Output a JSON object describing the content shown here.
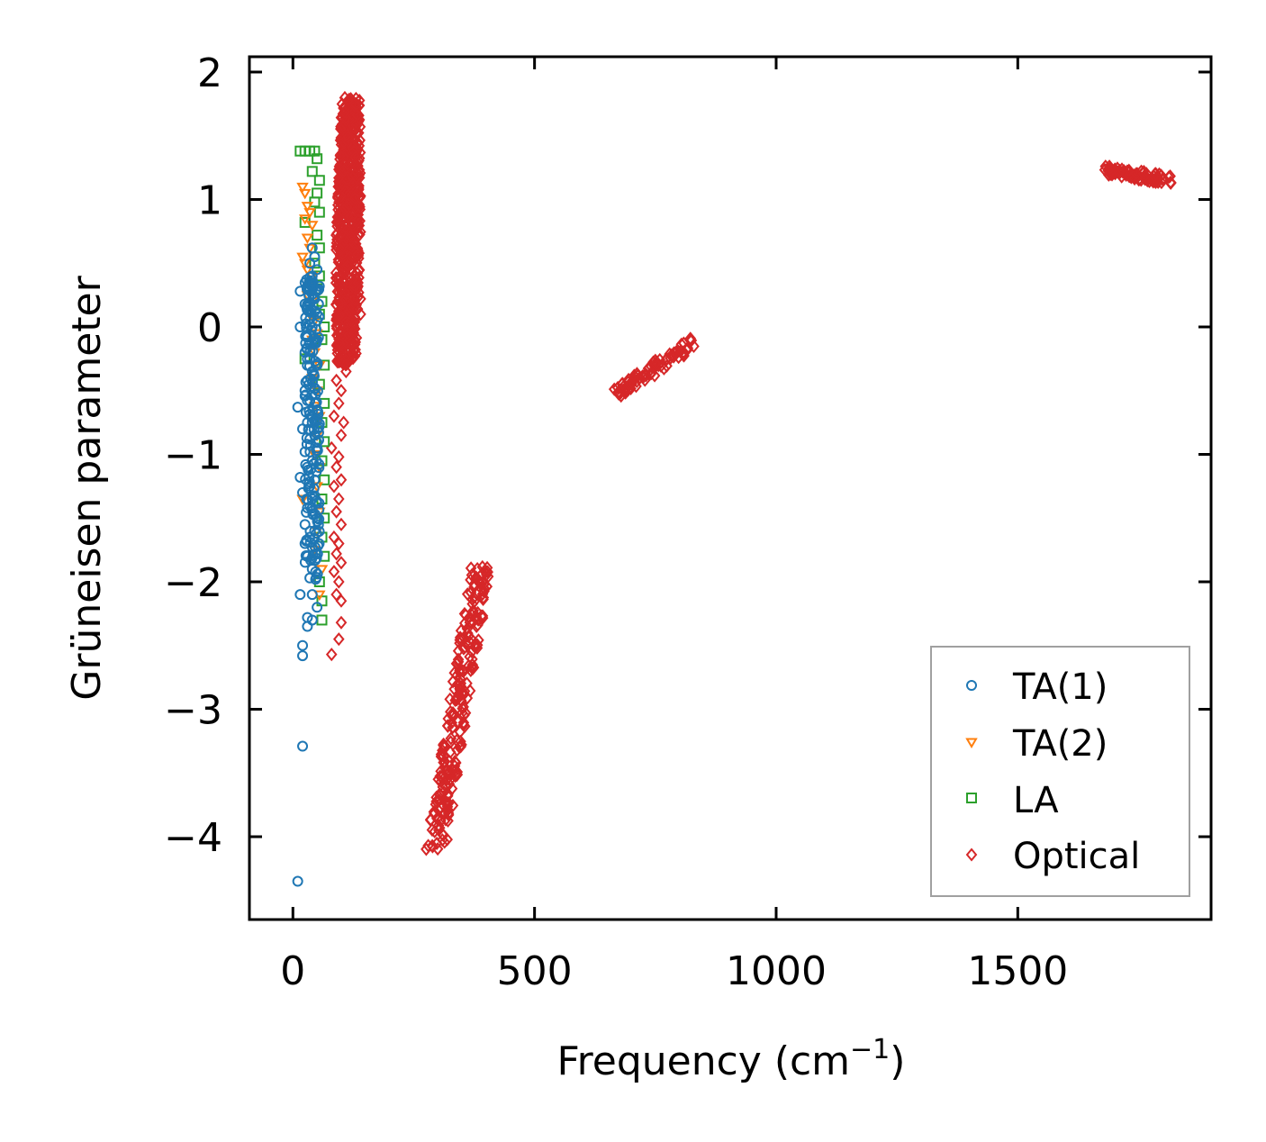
{
  "chart_data": {
    "type": "scatter",
    "title": "",
    "xlabel": "Frequency (cm",
    "xlabel_sup": "−1",
    "xlabel_close": ")",
    "ylabel": "Grüneisen parameter",
    "xlim": [
      -90,
      1900
    ],
    "ylim": [
      -4.65,
      2.12
    ],
    "xticks": [
      0,
      500,
      1000,
      1500
    ],
    "xtick_labels": [
      "0",
      "500",
      "1000",
      "1500"
    ],
    "yticks": [
      2,
      1,
      0,
      -1,
      -2,
      -3,
      -4
    ],
    "ytick_labels": [
      "2",
      "1",
      "0",
      "−1",
      "−2",
      "−3",
      "−4"
    ],
    "legend_position": "lower-right",
    "series": [
      {
        "name": "TA(1)",
        "marker": "circle",
        "color": "#1f77b4",
        "points": [
          [
            10,
            -4.35
          ],
          [
            20,
            -3.29
          ],
          [
            20,
            -2.58
          ],
          [
            20,
            -2.5
          ],
          [
            15,
            -2.1
          ],
          [
            30,
            -2.35
          ],
          [
            40,
            -2.3
          ],
          [
            30,
            -2.28
          ],
          [
            50,
            -2.2
          ],
          [
            40,
            -2.1
          ],
          [
            35,
            -1.97
          ],
          [
            40,
            -1.9
          ],
          [
            30,
            -1.8
          ],
          [
            25,
            -1.7
          ],
          [
            35,
            -1.65
          ],
          [
            45,
            -1.6
          ],
          [
            25,
            -1.55
          ],
          [
            50,
            -1.5
          ],
          [
            30,
            -1.42
          ],
          [
            40,
            -1.35
          ],
          [
            20,
            -1.3
          ],
          [
            35,
            -1.25
          ],
          [
            15,
            -1.18
          ],
          [
            45,
            -1.2
          ],
          [
            30,
            -1.1
          ],
          [
            40,
            -1.05
          ],
          [
            25,
            -0.98
          ],
          [
            50,
            -0.95
          ],
          [
            35,
            -0.88
          ],
          [
            45,
            -0.85
          ],
          [
            20,
            -0.8
          ],
          [
            30,
            -0.75
          ],
          [
            40,
            -0.7
          ],
          [
            10,
            -0.63
          ],
          [
            50,
            -0.65
          ],
          [
            35,
            -0.58
          ],
          [
            25,
            -0.5
          ],
          [
            45,
            -0.48
          ],
          [
            30,
            -0.42
          ],
          [
            40,
            -0.35
          ],
          [
            50,
            -0.3
          ],
          [
            35,
            -0.25
          ],
          [
            25,
            -0.2
          ],
          [
            45,
            -0.12
          ],
          [
            30,
            -0.08
          ],
          [
            40,
            0.0
          ],
          [
            15,
            0.0
          ],
          [
            50,
            0.05
          ],
          [
            35,
            0.12
          ],
          [
            25,
            0.18
          ],
          [
            45,
            0.22
          ],
          [
            15,
            0.28
          ],
          [
            30,
            0.32
          ],
          [
            40,
            0.4
          ],
          [
            50,
            0.45
          ],
          [
            35,
            0.5
          ],
          [
            45,
            0.55
          ],
          [
            40,
            0.62
          ]
        ]
      },
      {
        "name": "TA(2)",
        "marker": "triangle-down",
        "color": "#ff7f0e",
        "points": [
          [
            20,
            1.1
          ],
          [
            25,
            1.05
          ],
          [
            30,
            0.95
          ],
          [
            35,
            0.9
          ],
          [
            25,
            0.85
          ],
          [
            40,
            0.8
          ],
          [
            30,
            0.7
          ],
          [
            35,
            0.62
          ],
          [
            20,
            0.55
          ],
          [
            25,
            0.5
          ],
          [
            30,
            0.45
          ],
          [
            40,
            0.4
          ],
          [
            35,
            0.35
          ],
          [
            45,
            0.3
          ],
          [
            30,
            0.25
          ],
          [
            40,
            0.2
          ],
          [
            35,
            0.1
          ],
          [
            45,
            0.05
          ],
          [
            50,
            -0.05
          ],
          [
            40,
            -0.1
          ],
          [
            45,
            -0.2
          ],
          [
            55,
            -0.3
          ],
          [
            40,
            -0.4
          ],
          [
            50,
            -0.5
          ],
          [
            45,
            -0.62
          ],
          [
            55,
            -0.7
          ],
          [
            50,
            -0.85
          ],
          [
            45,
            -1.0
          ],
          [
            55,
            -1.1
          ],
          [
            50,
            -1.25
          ],
          [
            20,
            -1.35
          ],
          [
            55,
            -1.45
          ],
          [
            50,
            -1.6
          ],
          [
            45,
            -1.75
          ],
          [
            60,
            -1.9
          ],
          [
            55,
            -2.1
          ]
        ]
      },
      {
        "name": "LA",
        "marker": "square",
        "color": "#2ca02c",
        "points": [
          [
            15,
            1.38
          ],
          [
            25,
            1.38
          ],
          [
            35,
            1.38
          ],
          [
            45,
            1.38
          ],
          [
            50,
            1.32
          ],
          [
            40,
            1.22
          ],
          [
            55,
            1.15
          ],
          [
            50,
            1.05
          ],
          [
            45,
            0.98
          ],
          [
            55,
            0.9
          ],
          [
            25,
            0.82
          ],
          [
            50,
            0.72
          ],
          [
            55,
            0.62
          ],
          [
            45,
            0.5
          ],
          [
            55,
            0.4
          ],
          [
            50,
            0.3
          ],
          [
            60,
            0.2
          ],
          [
            55,
            0.1
          ],
          [
            65,
            0.0
          ],
          [
            60,
            -0.1
          ],
          [
            25,
            -0.25
          ],
          [
            65,
            -0.3
          ],
          [
            55,
            -0.45
          ],
          [
            65,
            -0.6
          ],
          [
            60,
            -0.75
          ],
          [
            65,
            -0.9
          ],
          [
            60,
            -1.05
          ],
          [
            65,
            -1.2
          ],
          [
            60,
            -1.35
          ],
          [
            65,
            -1.5
          ],
          [
            60,
            -1.65
          ],
          [
            65,
            -1.8
          ],
          [
            55,
            -2.0
          ],
          [
            60,
            -2.15
          ],
          [
            60,
            -2.3
          ]
        ]
      },
      {
        "name": "Optical",
        "marker": "diamond",
        "color": "#d62728",
        "points": [
          [
            80,
            -2.57
          ],
          [
            95,
            -2.45
          ],
          [
            100,
            -2.32
          ],
          [
            100,
            -2.15
          ],
          [
            90,
            -2.1
          ],
          [
            95,
            -2.0
          ],
          [
            85,
            -1.92
          ],
          [
            100,
            -1.85
          ],
          [
            90,
            -1.78
          ],
          [
            95,
            -1.7
          ],
          [
            85,
            -1.65
          ],
          [
            100,
            -1.55
          ],
          [
            90,
            -1.45
          ],
          [
            95,
            -1.35
          ],
          [
            85,
            -1.25
          ],
          [
            100,
            -1.2
          ],
          [
            90,
            -1.1
          ],
          [
            95,
            -1.02
          ],
          [
            80,
            -0.95
          ],
          [
            100,
            -0.85
          ],
          [
            105,
            -0.75
          ],
          [
            85,
            -0.7
          ],
          [
            95,
            -0.6
          ],
          [
            100,
            -0.5
          ],
          [
            90,
            -0.42
          ],
          [
            110,
            -0.35
          ],
          [
            100,
            -0.22
          ],
          [
            95,
            -0.12
          ],
          [
            120,
            0.05
          ],
          [
            140,
            0.1
          ],
          [
            140,
            0.22
          ]
        ],
        "clusters": [
          {
            "x_range": [
              70,
              150
            ],
            "y_range": [
              -0.3,
              1.8
            ],
            "shape": "band"
          },
          {
            "from": [
              295,
              -4.12
            ],
            "to": [
              390,
              -1.87
            ],
            "width": 22
          },
          {
            "from": [
              670,
              -0.52
            ],
            "to": [
              830,
              -0.12
            ],
            "width": 14
          },
          {
            "from": [
              1680,
              1.23
            ],
            "to": [
              1820,
              1.15
            ],
            "width": 10
          }
        ]
      }
    ]
  }
}
